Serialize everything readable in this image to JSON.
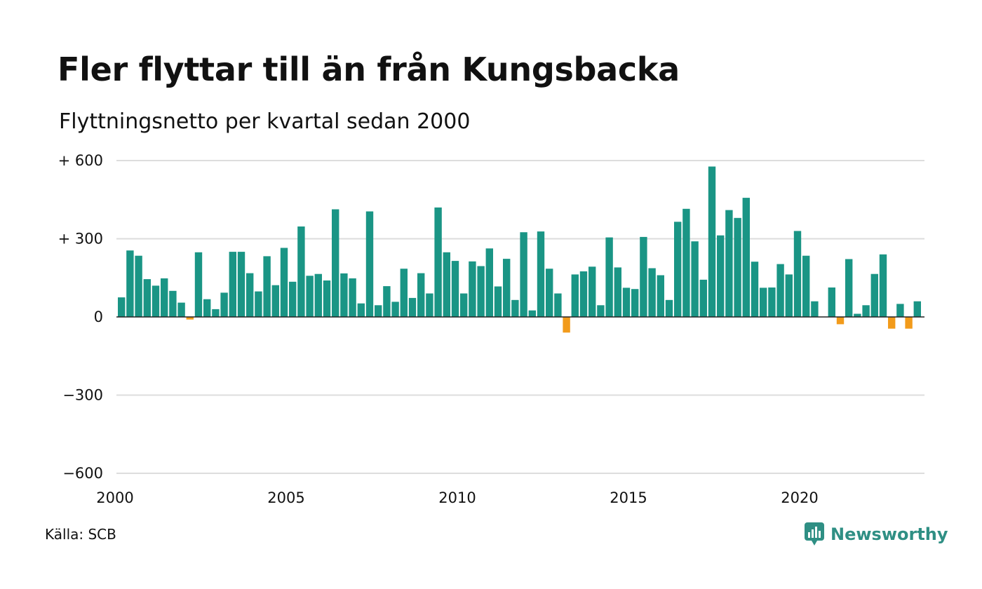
{
  "header": {
    "title": "Fler flyttar till än från Kungsbacka",
    "subtitle": "Flyttningsnetto per kvartal sedan 2000"
  },
  "footer": {
    "source": "Källa: SCB",
    "brand": "Newsworthy"
  },
  "colors": {
    "positive": "#1a9585",
    "negative": "#f29b1b",
    "grid": "#dddddd",
    "zero_line": "#222222",
    "brand": "#2f8f84"
  },
  "chart_data": {
    "type": "bar",
    "title": "Fler flyttar till än från Kungsbacka",
    "subtitle": "Flyttningsnetto per kvartal sedan 2000",
    "x_start": "2000 Q1",
    "x_ticks": [
      "2000",
      "2005",
      "2010",
      "2015",
      "2020"
    ],
    "y_ticks": [
      600,
      300,
      0,
      -300,
      -600
    ],
    "y_tick_labels": [
      "+ 600",
      "+ 300",
      "0",
      "−300",
      "−600"
    ],
    "ylim": [
      -600,
      600
    ],
    "grid": true,
    "values": [
      75,
      255,
      235,
      145,
      120,
      148,
      100,
      55,
      -10,
      248,
      68,
      30,
      93,
      250,
      250,
      168,
      98,
      233,
      122,
      265,
      135,
      347,
      158,
      165,
      140,
      413,
      167,
      148,
      52,
      405,
      45,
      118,
      58,
      185,
      73,
      168,
      90,
      420,
      248,
      215,
      90,
      213,
      195,
      263,
      117,
      223,
      65,
      325,
      25,
      328,
      185,
      90,
      -60,
      163,
      175,
      193,
      45,
      305,
      190,
      112,
      107,
      307,
      187,
      160,
      65,
      365,
      415,
      290,
      143,
      577,
      313,
      410,
      380,
      457,
      212,
      112,
      113,
      203,
      163,
      330,
      235,
      60,
      0,
      113,
      -28,
      222,
      12,
      45,
      165,
      240,
      -45,
      50,
      -45,
      60
    ]
  }
}
